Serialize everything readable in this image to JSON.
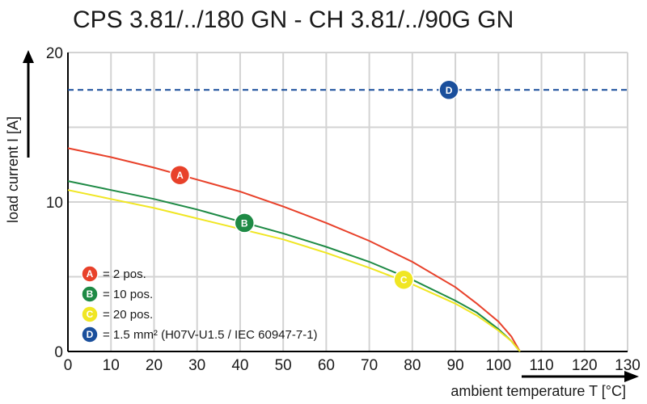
{
  "chart_data": {
    "type": "line",
    "title": "CPS 3.81/../180 GN - CH 3.81/../90G GN",
    "xlabel": "ambient temperature T [°C]",
    "ylabel": "load current I [A]",
    "xlim": [
      0,
      130
    ],
    "ylim": [
      0,
      20
    ],
    "xticks": [
      0,
      10,
      20,
      30,
      40,
      50,
      60,
      70,
      80,
      90,
      100,
      110,
      120,
      130
    ],
    "yticks": [
      0,
      10,
      20
    ],
    "grid": true,
    "legend_position": "bottom-left",
    "series": [
      {
        "id": "A",
        "color": "#e8412a",
        "legend": "= 2 pos.",
        "marker_x": 26,
        "marker_y": 11.8,
        "x": [
          0,
          10,
          20,
          30,
          40,
          50,
          60,
          70,
          80,
          90,
          95,
          100,
          103,
          105
        ],
        "y": [
          13.6,
          13.0,
          12.3,
          11.5,
          10.7,
          9.7,
          8.6,
          7.4,
          6.0,
          4.3,
          3.2,
          2.0,
          1.0,
          0
        ]
      },
      {
        "id": "B",
        "color": "#1e8a45",
        "legend": "= 10 pos.",
        "marker_x": 41,
        "marker_y": 8.6,
        "x": [
          0,
          10,
          20,
          30,
          40,
          50,
          60,
          70,
          80,
          90,
          95,
          100,
          103,
          105
        ],
        "y": [
          11.4,
          10.8,
          10.2,
          9.5,
          8.7,
          7.9,
          7.0,
          6.0,
          4.8,
          3.4,
          2.6,
          1.5,
          0.7,
          0
        ]
      },
      {
        "id": "C",
        "color": "#f0e623",
        "legend": "= 20 pos.",
        "marker_x": 78,
        "marker_y": 4.8,
        "x": [
          0,
          10,
          20,
          30,
          40,
          50,
          60,
          70,
          80,
          90,
          95,
          100,
          103,
          105
        ],
        "y": [
          10.8,
          10.2,
          9.6,
          8.9,
          8.2,
          7.5,
          6.6,
          5.6,
          4.5,
          3.2,
          2.4,
          1.4,
          0.7,
          0
        ]
      },
      {
        "id": "D",
        "color": "#1a4f9c",
        "legend": "= 1.5 mm² (H07V-U1.5 / IEC 60947-7-1)",
        "dashed": true,
        "marker_x": 88.5,
        "marker_y": 17.5,
        "x": [
          0,
          130
        ],
        "y": [
          17.5,
          17.5
        ]
      }
    ]
  }
}
